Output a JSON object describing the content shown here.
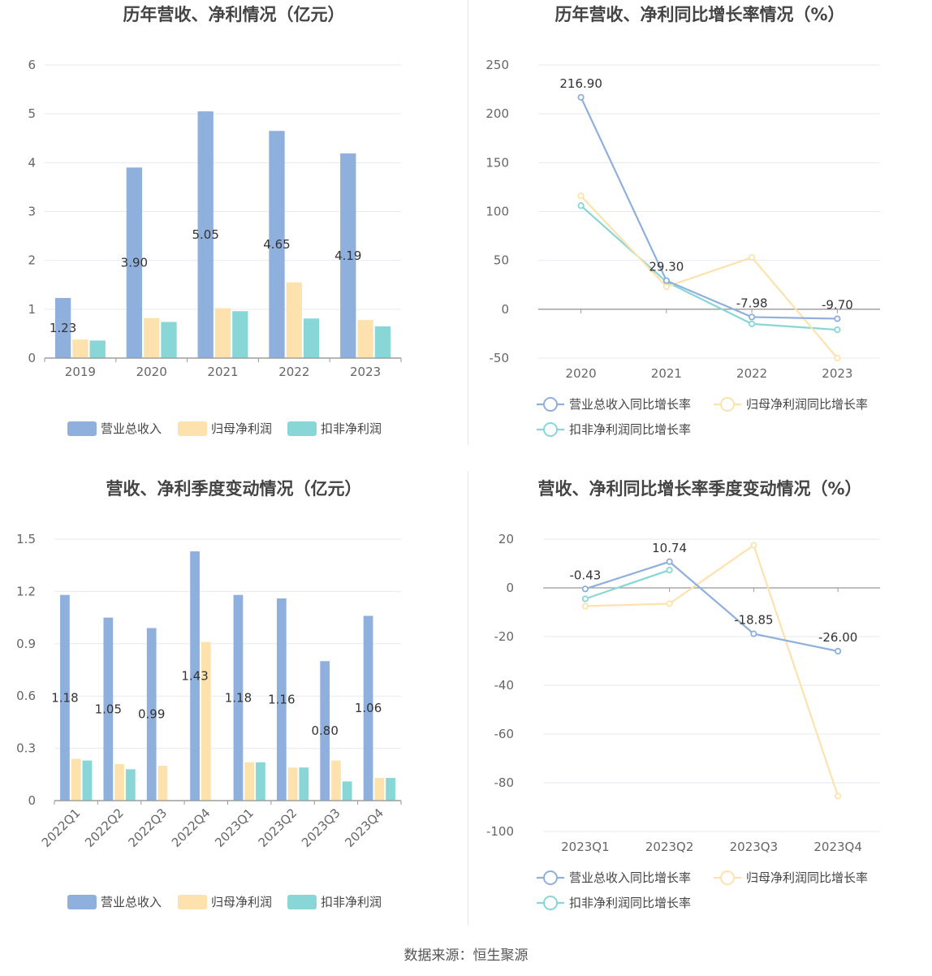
{
  "source": "数据来源：恒生聚源",
  "chart_data": [
    {
      "type": "bar",
      "title": "历年营收、净利情况（亿元）",
      "categories": [
        "2019",
        "2020",
        "2021",
        "2022",
        "2023"
      ],
      "ylim": [
        0,
        6
      ],
      "yticks": [
        "0",
        "1",
        "2",
        "3",
        "4",
        "5",
        "6"
      ],
      "series": [
        {
          "name": "营业总收入",
          "color": "#8fafdc",
          "values": [
            1.23,
            3.9,
            5.05,
            4.65,
            4.19
          ],
          "labels": [
            "1.23",
            "3.90",
            "5.05",
            "4.65",
            "4.19"
          ]
        },
        {
          "name": "归母净利润",
          "color": "#fde2ae",
          "values": [
            0.38,
            0.82,
            1.02,
            1.55,
            0.78
          ]
        },
        {
          "name": "扣非净利润",
          "color": "#89d6d6",
          "values": [
            0.36,
            0.74,
            0.96,
            0.81,
            0.65
          ]
        }
      ]
    },
    {
      "type": "line",
      "title": "历年营收、净利同比增长率情况（%）",
      "categories": [
        "2020",
        "2021",
        "2022",
        "2023"
      ],
      "ylim": [
        -50,
        250
      ],
      "yticks": [
        "-50",
        "0",
        "50",
        "100",
        "150",
        "200",
        "250"
      ],
      "series": [
        {
          "name": "营业总收入同比增长率",
          "color": "#8fafdc",
          "values": [
            216.9,
            29.3,
            -7.98,
            -9.7
          ],
          "labels": [
            "216.90",
            "29.30",
            "-7.98",
            "-9.70"
          ]
        },
        {
          "name": "归母净利润同比增长率",
          "color": "#fde2ae",
          "values": [
            116,
            23,
            53,
            -50
          ]
        },
        {
          "name": "扣非净利润同比增长率",
          "color": "#89d6d6",
          "values": [
            106,
            28,
            -15,
            -21
          ]
        }
      ]
    },
    {
      "type": "bar",
      "title": "营收、净利季度变动情况（亿元）",
      "categories": [
        "2022Q1",
        "2022Q2",
        "2022Q3",
        "2022Q4",
        "2023Q1",
        "2023Q2",
        "2023Q3",
        "2023Q4"
      ],
      "ylim": [
        0,
        1.5
      ],
      "yticks": [
        "0",
        "0.3",
        "0.6",
        "0.9",
        "1.2",
        "1.5"
      ],
      "series": [
        {
          "name": "营业总收入",
          "color": "#8fafdc",
          "values": [
            1.18,
            1.05,
            0.99,
            1.43,
            1.18,
            1.16,
            0.8,
            1.06
          ],
          "labels": [
            "1.18",
            "1.05",
            "0.99",
            "1.43",
            "1.18",
            "1.16",
            "0.80",
            "1.06"
          ]
        },
        {
          "name": "归母净利润",
          "color": "#fde2ae",
          "values": [
            0.24,
            0.21,
            0.2,
            0.91,
            0.22,
            0.19,
            0.23,
            0.13
          ]
        },
        {
          "name": "扣非净利润",
          "color": "#89d6d6",
          "values": [
            0.23,
            0.18,
            0.0,
            0.0,
            0.22,
            0.19,
            0.11,
            0.13
          ]
        }
      ]
    },
    {
      "type": "line",
      "title": "营收、净利同比增长率季度变动情况（%）",
      "categories": [
        "2023Q1",
        "2023Q2",
        "2023Q3",
        "2023Q4"
      ],
      "ylim": [
        -100,
        20
      ],
      "yticks": [
        "-100",
        "-80",
        "-60",
        "-40",
        "-20",
        "0",
        "20"
      ],
      "series": [
        {
          "name": "营业总收入同比增长率",
          "color": "#8fafdc",
          "values": [
            -0.43,
            10.74,
            -18.85,
            -26.0
          ],
          "labels": [
            "-0.43",
            "10.74",
            "-18.85",
            "-26.00"
          ]
        },
        {
          "name": "归母净利润同比增长率",
          "color": "#fde2ae",
          "values": [
            -7.5,
            -6.5,
            17.5,
            -85.5
          ]
        },
        {
          "name": "扣非净利润同比增长率",
          "color": "#89d6d6",
          "values": [
            -4.5,
            7.3,
            null,
            null
          ]
        }
      ]
    }
  ]
}
